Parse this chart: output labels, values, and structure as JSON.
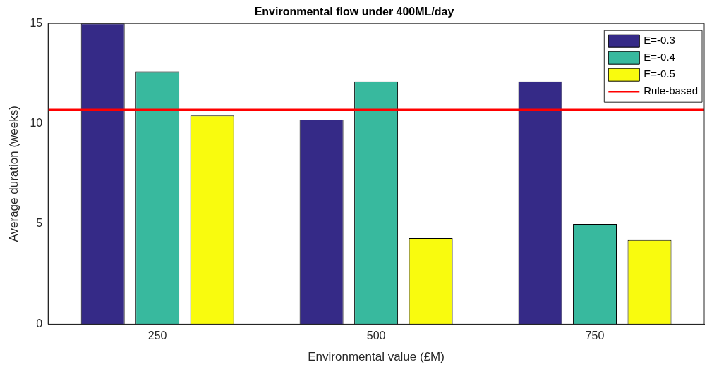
{
  "chart_data": {
    "type": "bar",
    "title": "Environmental flow under 400ML/day",
    "xlabel": "Environmental value (£M)",
    "ylabel": "Average duration (weeks)",
    "categories": [
      "250",
      "500",
      "750"
    ],
    "series": [
      {
        "name": "E=-0.3",
        "color": "#352a87",
        "values": [
          15,
          10.2,
          12.1
        ]
      },
      {
        "name": "E=-0.4",
        "color": "#38b99e",
        "values": [
          12.6,
          12.1,
          5.0
        ]
      },
      {
        "name": "E=-0.5",
        "color": "#f9fb0e",
        "values": [
          10.4,
          4.3,
          4.2
        ]
      }
    ],
    "ylim": [
      0,
      15
    ],
    "yticks": [
      0,
      5,
      10,
      15
    ],
    "grid": false,
    "legend": "top right",
    "ref_lines": [
      {
        "axis": "y",
        "value": 10.7,
        "label": "Rule-based",
        "color": "#ff0000"
      }
    ]
  }
}
